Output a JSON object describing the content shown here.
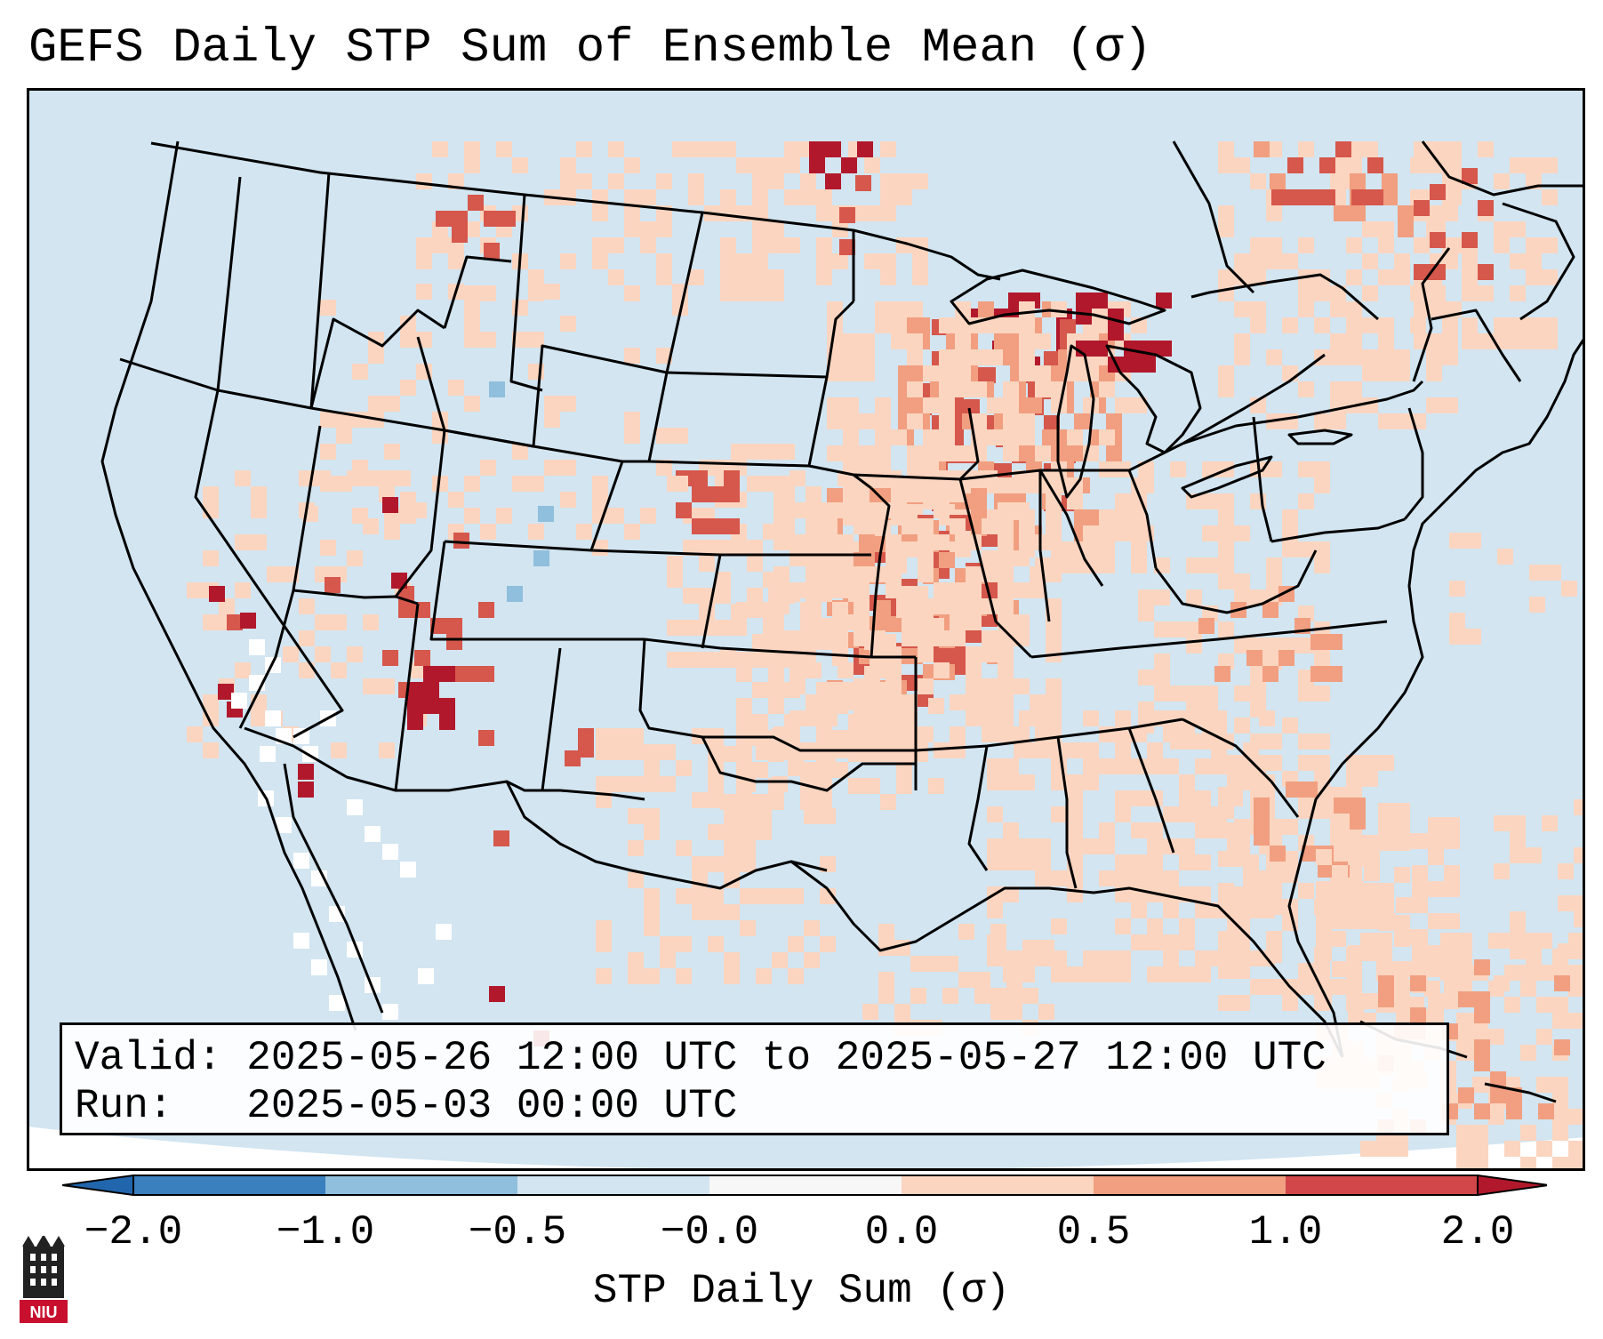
{
  "title": "GEFS Daily STP Sum of Ensemble Mean (σ)",
  "info": {
    "valid": "Valid: 2025-05-26 12:00 UTC to 2025-05-27 12:00 UTC",
    "run": "Run:   2025-05-03 00:00 UTC"
  },
  "colorbar": {
    "label": "STP Daily Sum (σ)",
    "ticks": [
      "−2.0",
      "−1.0",
      "−0.5",
      "−0.0",
      "0.0",
      "0.5",
      "1.0",
      "2.0"
    ],
    "colors": [
      "#3a7fbe",
      "#8fbfdc",
      "#d2e5f1",
      "#f7f7f7",
      "#fbd5c0",
      "#f19f80",
      "#d1474a"
    ],
    "extend_low_color": "#2166ac",
    "extend_high_color": "#b2182b"
  },
  "map": {
    "background": "#d2e5f1",
    "colors": {
      "pale": "#fbd5c0",
      "orange": "#f19f80",
      "red": "#d6574b",
      "darkred": "#b2182b",
      "lightblue": "#8fbfdc",
      "white": "#ffffff"
    }
  },
  "logo": {
    "text": "NIU",
    "icon": "niu-tower-icon"
  }
}
